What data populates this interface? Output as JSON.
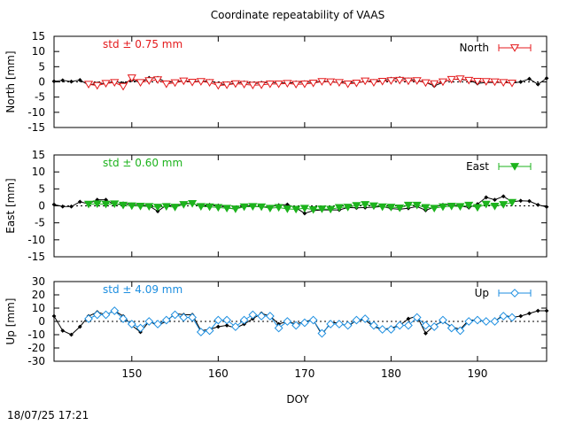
{
  "title": "Coordinate repeatability of VAAS",
  "footer_timestamp": "18/07/25 17:21",
  "xlabel": "DOY",
  "x_tick_labels": [
    "150",
    "160",
    "170",
    "180",
    "190"
  ],
  "chart_data": [
    {
      "type": "line",
      "component": "North",
      "ylabel": "North [mm]",
      "ylim": [
        -15,
        15
      ],
      "yticks": [
        -15,
        -10,
        -5,
        0,
        5,
        10,
        15
      ],
      "xlim": [
        141,
        198
      ],
      "xticks": [
        150,
        160,
        170,
        180,
        190
      ],
      "legend": "North",
      "stat_label": "std ± 0.75 mm",
      "series_color": "#e41a1c",
      "stat_color": "#e41a1c",
      "marker": "triangle-down-open",
      "reference": {
        "x": [
          141,
          142,
          143,
          144,
          145,
          146,
          147,
          148,
          149,
          150,
          151,
          152,
          153,
          154,
          155,
          156,
          157,
          158,
          159,
          160,
          161,
          162,
          163,
          164,
          165,
          166,
          167,
          168,
          169,
          170,
          171,
          172,
          173,
          174,
          175,
          176,
          177,
          178,
          179,
          180,
          181,
          182,
          183,
          184,
          185,
          186,
          187,
          188,
          189,
          190,
          191,
          192,
          193,
          194,
          195,
          196,
          197,
          198
        ],
        "y": [
          0.2,
          0.5,
          0.1,
          0.6,
          -1,
          -0.5,
          -0.5,
          0.2,
          -0.5,
          0.6,
          -0.2,
          1.3,
          1.3,
          -0.2,
          0.1,
          0.3,
          0.2,
          0.1,
          0.3,
          -0.5,
          -1,
          -0.3,
          -0.2,
          -0.6,
          -0.3,
          -0.2,
          -0.3,
          -0.4,
          -0.2,
          -0.1,
          -0.1,
          0.2,
          0.1,
          -0.3,
          -0.5,
          -0.3,
          0.1,
          0.3,
          0.4,
          1,
          1.2,
          0.8,
          0.6,
          -0.2,
          -1.3,
          -0.2,
          0.9,
          0.8,
          0.5,
          -0.5,
          -0.2,
          -0.2,
          -0.2,
          -0.4,
          0,
          1,
          -0.8,
          1.2
        ]
      },
      "series": {
        "x": [
          145,
          146,
          147,
          148,
          149,
          150,
          151,
          152,
          153,
          154,
          155,
          156,
          157,
          158,
          159,
          160,
          161,
          162,
          163,
          164,
          165,
          166,
          167,
          168,
          169,
          170,
          171,
          172,
          173,
          174,
          175,
          176,
          177,
          178,
          179,
          180,
          181,
          182,
          183,
          184,
          185,
          186,
          187,
          188,
          189,
          190,
          191,
          192,
          193,
          194
        ],
        "y": [
          -0.8,
          -1.2,
          -0.5,
          -0.2,
          -1.5,
          1.3,
          -0.2,
          0.4,
          0.7,
          -0.7,
          -0.3,
          0.3,
          -0.1,
          0.1,
          -0.2,
          -1.2,
          -1,
          -0.6,
          -0.8,
          -1.1,
          -1,
          -0.7,
          -0.7,
          -0.5,
          -0.8,
          -0.7,
          -0.4,
          0.1,
          0,
          -0.2,
          -0.7,
          -0.4,
          0.3,
          -0.2,
          0.2,
          0.4,
          0.5,
          0.3,
          0.4,
          -0.3,
          -0.6,
          0,
          0.8,
          1,
          0.5,
          0.2,
          0.1,
          0,
          -0.2,
          -0.4
        ]
      }
    },
    {
      "type": "line",
      "component": "East",
      "ylabel": "East [mm]",
      "ylim": [
        -15,
        15
      ],
      "yticks": [
        -15,
        -10,
        -5,
        0,
        5,
        10,
        15
      ],
      "xlim": [
        141,
        198
      ],
      "xticks": [
        150,
        160,
        170,
        180,
        190
      ],
      "legend": "East",
      "stat_label": "std ± 0.60 mm",
      "series_color": "#1db31d",
      "stat_color": "#1db31d",
      "marker": "triangle-down-filled",
      "reference": {
        "x": [
          141,
          142,
          143,
          144,
          145,
          146,
          147,
          148,
          149,
          150,
          151,
          152,
          153,
          154,
          155,
          156,
          157,
          158,
          159,
          160,
          161,
          162,
          163,
          164,
          165,
          166,
          167,
          168,
          169,
          170,
          171,
          172,
          173,
          174,
          175,
          176,
          177,
          178,
          179,
          180,
          181,
          182,
          183,
          184,
          185,
          186,
          187,
          188,
          189,
          190,
          191,
          192,
          193,
          194,
          195,
          196,
          197,
          198
        ],
        "y": [
          0.4,
          -0.2,
          -0.2,
          1.2,
          0.6,
          1.8,
          1.8,
          0.3,
          0.7,
          0.4,
          0.3,
          0,
          -1.6,
          0.2,
          0,
          0.7,
          0.7,
          0,
          0.3,
          0.1,
          -0.5,
          -1,
          0.1,
          0,
          -0.4,
          -0.3,
          0.2,
          0.4,
          -0.6,
          -2.2,
          -1.4,
          -1.2,
          -1.2,
          -1.2,
          -0.5,
          -0.6,
          -0.5,
          -0.4,
          -0.2,
          -0.8,
          -1,
          -0.7,
          -0.2,
          -1.3,
          -0.4,
          0.3,
          0.3,
          0,
          -0.5,
          0.5,
          2.5,
          1.8,
          2.8,
          1.2,
          1.5,
          1.4,
          0.3,
          -0.3
        ]
      },
      "series": {
        "x": [
          145,
          146,
          147,
          148,
          149,
          150,
          151,
          152,
          153,
          154,
          155,
          156,
          157,
          158,
          159,
          160,
          161,
          162,
          163,
          164,
          165,
          166,
          167,
          168,
          169,
          170,
          171,
          172,
          173,
          174,
          175,
          176,
          177,
          178,
          179,
          180,
          181,
          182,
          183,
          184,
          185,
          186,
          187,
          188,
          189,
          190,
          191,
          192,
          193,
          194
        ],
        "y": [
          0.5,
          0.6,
          0.5,
          0.6,
          0.2,
          0,
          -0.1,
          -0.2,
          -0.4,
          -0.2,
          -0.4,
          0.4,
          0.7,
          -0.2,
          -0.3,
          -0.5,
          -0.7,
          -0.9,
          -0.3,
          -0.2,
          -0.3,
          -0.7,
          -0.5,
          -0.9,
          -1,
          -0.7,
          -1.1,
          -0.9,
          -1,
          -0.5,
          -0.4,
          0.1,
          0.4,
          0,
          -0.3,
          -0.4,
          -0.6,
          0.2,
          0.2,
          -0.5,
          -0.7,
          -0.3,
          -0.1,
          -0.2,
          0.2,
          -0.5,
          0.5,
          -0.1,
          0.4,
          1
        ]
      }
    },
    {
      "type": "line",
      "component": "Up",
      "ylabel": "Up [mm]",
      "ylim": [
        -30,
        30
      ],
      "yticks": [
        -30,
        -20,
        -10,
        0,
        10,
        20,
        30
      ],
      "xlim": [
        141,
        198
      ],
      "xticks": [
        150,
        160,
        170,
        180,
        190
      ],
      "legend": "Up",
      "stat_label": "std ± 4.09 mm",
      "series_color": "#1c8ee0",
      "stat_color": "#1c8ee0",
      "marker": "diamond-open",
      "reference": {
        "x": [
          141,
          142,
          143,
          144,
          145,
          146,
          147,
          148,
          149,
          150,
          151,
          152,
          153,
          154,
          155,
          156,
          157,
          158,
          159,
          160,
          161,
          162,
          163,
          164,
          165,
          166,
          167,
          168,
          169,
          170,
          171,
          172,
          173,
          174,
          175,
          176,
          177,
          178,
          179,
          180,
          181,
          182,
          183,
          184,
          185,
          186,
          187,
          188,
          189,
          190,
          191,
          192,
          193,
          194,
          195,
          196,
          197,
          198
        ],
        "y": [
          4,
          -7,
          -10,
          -4,
          4,
          7,
          5,
          8,
          4,
          -3,
          -8,
          0,
          -3,
          0,
          6,
          5,
          5,
          -7,
          -6,
          -4,
          -3,
          -5,
          -2,
          2,
          6,
          4,
          -2,
          0,
          -2,
          0,
          1,
          -10,
          -1,
          -1,
          -4,
          1,
          1,
          -4,
          -6,
          -5,
          -3,
          2,
          4,
          -9,
          -3,
          0,
          -4,
          -6,
          1,
          1,
          0,
          0,
          5,
          3,
          4,
          6,
          8,
          8
        ]
      },
      "series": {
        "x": [
          145,
          146,
          147,
          148,
          149,
          150,
          151,
          152,
          153,
          154,
          155,
          156,
          157,
          158,
          159,
          160,
          161,
          162,
          163,
          164,
          165,
          166,
          167,
          168,
          169,
          170,
          171,
          172,
          173,
          174,
          175,
          176,
          177,
          178,
          179,
          180,
          181,
          182,
          183,
          184,
          185,
          186,
          187,
          188,
          189,
          190,
          191,
          192,
          193,
          194
        ],
        "y": [
          2,
          5,
          5,
          8,
          2,
          -2,
          -5,
          0,
          -2,
          1,
          5,
          3,
          3,
          -8,
          -7,
          1,
          1,
          -4,
          1,
          5,
          4,
          4,
          -5,
          0,
          -3,
          -1,
          1,
          -9,
          -2,
          -2,
          -3,
          1,
          2,
          -3,
          -6,
          -6,
          -3,
          -3,
          3,
          -3,
          -4,
          1,
          -5,
          -7,
          0,
          1,
          0,
          0,
          4,
          3
        ]
      }
    }
  ]
}
